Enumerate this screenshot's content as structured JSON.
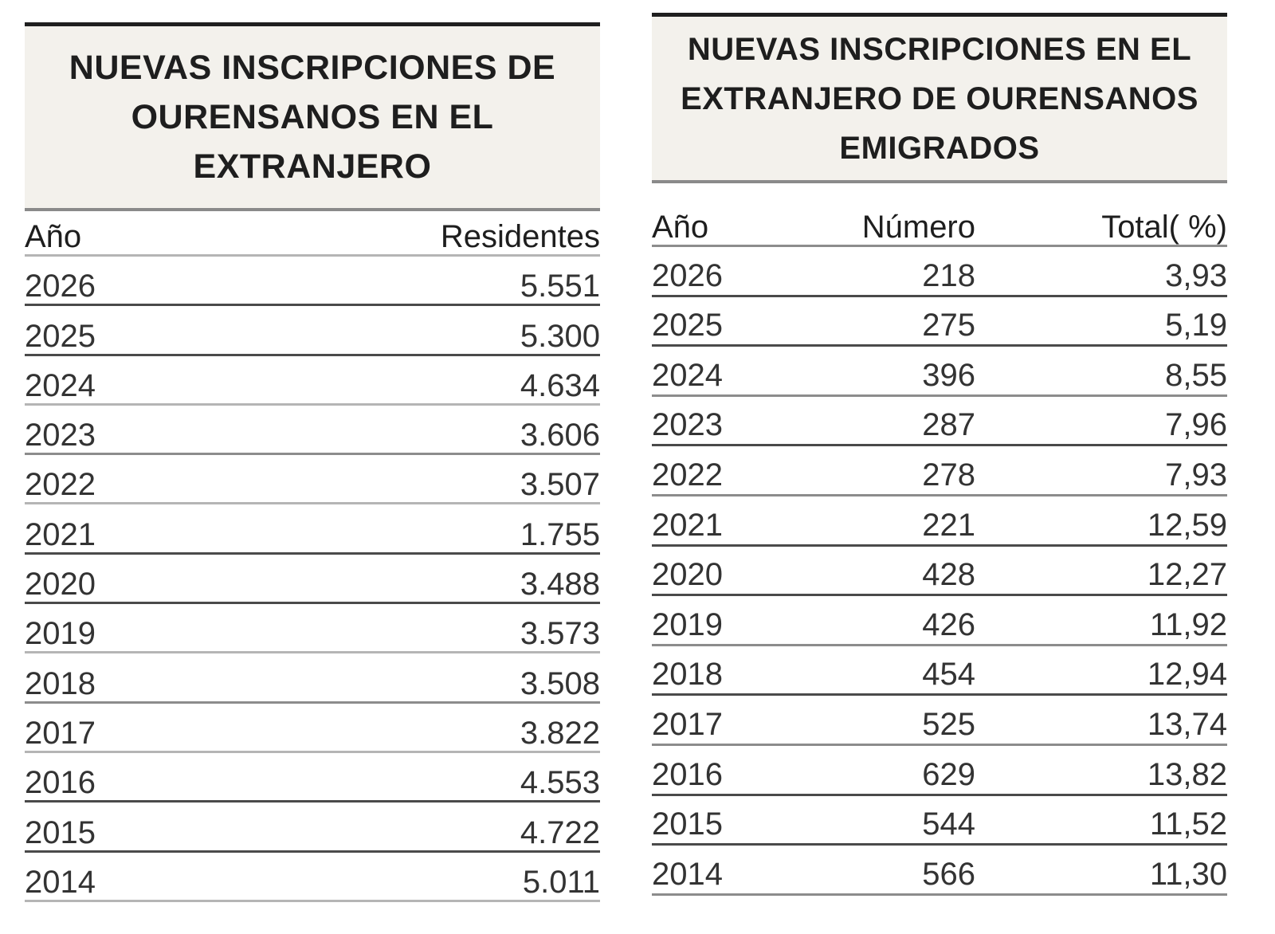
{
  "left_table": {
    "title": "NUEVAS INSCRIPCIONES DE OURENSANOS EN EL EXTRANJERO",
    "columns": [
      "Año",
      "Residentes"
    ],
    "rows": [
      {
        "year": "2026",
        "residentes": "5.551"
      },
      {
        "year": "2025",
        "residentes": "5.300"
      },
      {
        "year": "2024",
        "residentes": "4.634"
      },
      {
        "year": "2023",
        "residentes": "3.606"
      },
      {
        "year": "2022",
        "residentes": "3.507"
      },
      {
        "year": "2021",
        "residentes": "1.755"
      },
      {
        "year": "2020",
        "residentes": "3.488"
      },
      {
        "year": "2019",
        "residentes": "3.573"
      },
      {
        "year": "2018",
        "residentes": "3.508"
      },
      {
        "year": "2017",
        "residentes": "3.822"
      },
      {
        "year": "2016",
        "residentes": "4.553"
      },
      {
        "year": "2015",
        "residentes": "4.722"
      },
      {
        "year": "2014",
        "residentes": "5.011"
      }
    ]
  },
  "right_table": {
    "title": "NUEVAS INSCRIPCIONES EN EL EXTRANJERO DE OURENSANOS EMIGRADOS",
    "columns": [
      "Año",
      "Número",
      "Total( %)"
    ],
    "rows": [
      {
        "year": "2026",
        "numero": "218",
        "total_pct": "3,93"
      },
      {
        "year": "2025",
        "numero": "275",
        "total_pct": "5,19"
      },
      {
        "year": "2024",
        "numero": "396",
        "total_pct": "8,55"
      },
      {
        "year": "2023",
        "numero": "287",
        "total_pct": "7,96"
      },
      {
        "year": "2022",
        "numero": "278",
        "total_pct": "7,93"
      },
      {
        "year": "2021",
        "numero": "221",
        "total_pct": "12,59"
      },
      {
        "year": "2020",
        "numero": "428",
        "total_pct": "12,27"
      },
      {
        "year": "2019",
        "numero": "426",
        "total_pct": "11,92"
      },
      {
        "year": "2018",
        "numero": "454",
        "total_pct": "12,94"
      },
      {
        "year": "2017",
        "numero": "525",
        "total_pct": "13,74"
      },
      {
        "year": "2016",
        "numero": "629",
        "total_pct": "13,82"
      },
      {
        "year": "2015",
        "numero": "544",
        "total_pct": "11,52"
      },
      {
        "year": "2014",
        "numero": "566",
        "total_pct": "11,30"
      }
    ]
  },
  "colors": {
    "title_background": "#f3f1ec",
    "top_rule": "#1f1f1f",
    "row_rule": "#8c8c8c",
    "text": "#333333"
  }
}
